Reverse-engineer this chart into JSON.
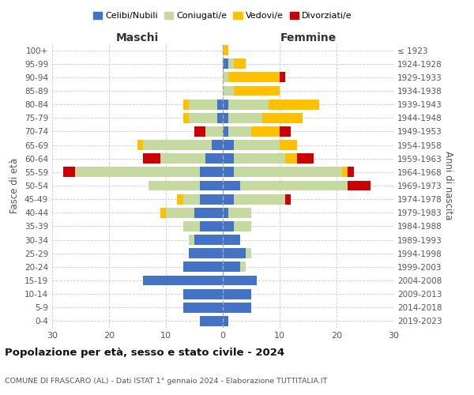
{
  "age_groups": [
    "0-4",
    "5-9",
    "10-14",
    "15-19",
    "20-24",
    "25-29",
    "30-34",
    "35-39",
    "40-44",
    "45-49",
    "50-54",
    "55-59",
    "60-64",
    "65-69",
    "70-74",
    "75-79",
    "80-84",
    "85-89",
    "90-94",
    "95-99",
    "100+"
  ],
  "birth_years": [
    "2019-2023",
    "2014-2018",
    "2009-2013",
    "2004-2008",
    "1999-2003",
    "1994-1998",
    "1989-1993",
    "1984-1988",
    "1979-1983",
    "1974-1978",
    "1969-1973",
    "1964-1968",
    "1959-1963",
    "1954-1958",
    "1949-1953",
    "1944-1948",
    "1939-1943",
    "1934-1938",
    "1929-1933",
    "1924-1928",
    "≤ 1923"
  ],
  "males": {
    "celibi": [
      4,
      7,
      7,
      14,
      7,
      6,
      5,
      4,
      5,
      4,
      4,
      4,
      3,
      2,
      0,
      1,
      1,
      0,
      0,
      0,
      0
    ],
    "coniugati": [
      0,
      0,
      0,
      0,
      0,
      0,
      1,
      3,
      5,
      3,
      9,
      22,
      8,
      12,
      3,
      5,
      5,
      0,
      0,
      0,
      0
    ],
    "vedovi": [
      0,
      0,
      0,
      0,
      0,
      0,
      0,
      0,
      1,
      1,
      0,
      0,
      0,
      1,
      0,
      1,
      1,
      0,
      0,
      0,
      0
    ],
    "divorziati": [
      0,
      0,
      0,
      0,
      0,
      0,
      0,
      0,
      0,
      0,
      0,
      2,
      3,
      0,
      2,
      0,
      0,
      0,
      0,
      0,
      0
    ]
  },
  "females": {
    "nubili": [
      1,
      5,
      5,
      6,
      3,
      4,
      3,
      2,
      1,
      2,
      3,
      2,
      2,
      2,
      1,
      1,
      1,
      0,
      0,
      1,
      0
    ],
    "coniugate": [
      0,
      0,
      0,
      0,
      1,
      1,
      0,
      3,
      4,
      9,
      19,
      19,
      9,
      8,
      4,
      6,
      7,
      2,
      1,
      1,
      0
    ],
    "vedove": [
      0,
      0,
      0,
      0,
      0,
      0,
      0,
      0,
      0,
      0,
      0,
      1,
      2,
      3,
      5,
      7,
      9,
      8,
      9,
      2,
      1
    ],
    "divorziate": [
      0,
      0,
      0,
      0,
      0,
      0,
      0,
      0,
      0,
      1,
      4,
      1,
      3,
      0,
      2,
      0,
      0,
      0,
      1,
      0,
      0
    ]
  },
  "colors": {
    "celibi_nubili": "#4472c4",
    "coniugati": "#c5d9a0",
    "vedovi": "#ffc000",
    "divorziati": "#cc0000"
  },
  "xlim": 30,
  "title": "Popolazione per età, sesso e stato civile - 2024",
  "subtitle": "COMUNE DI FRASCARO (AL) - Dati ISTAT 1° gennaio 2024 - Elaborazione TUTTITALIA.IT",
  "ylabel_left": "Fasce di età",
  "ylabel_right": "Anni di nascita",
  "xlabel_males": "Maschi",
  "xlabel_females": "Femmine",
  "legend_labels": [
    "Celibi/Nubili",
    "Coniugati/e",
    "Vedovi/e",
    "Divorziati/e"
  ],
  "background_color": "#ffffff",
  "bar_height": 0.75
}
